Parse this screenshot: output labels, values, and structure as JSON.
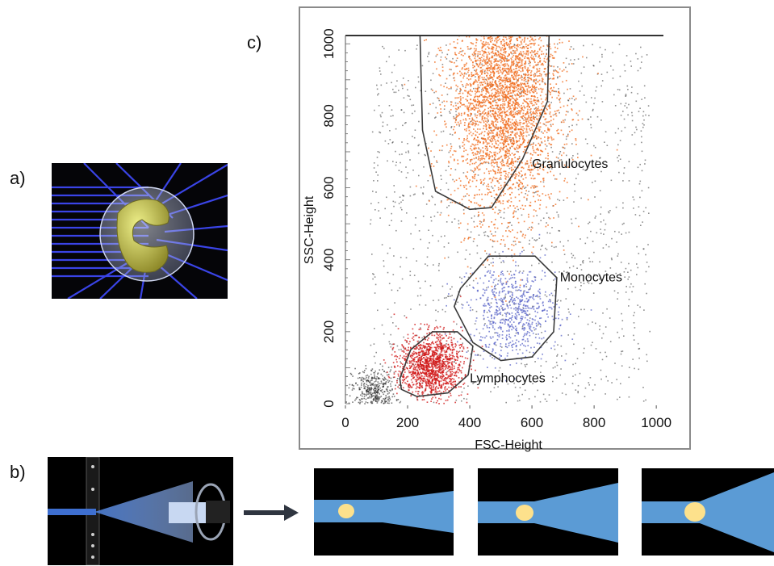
{
  "panel_labels": {
    "a": "a)",
    "b": "b)",
    "c": "c)"
  },
  "chart_data": {
    "type": "scatter",
    "title": "",
    "xlabel": "FSC-Height",
    "ylabel": "SSC-Height",
    "xlim": [
      0,
      1023
    ],
    "ylim": [
      0,
      1023
    ],
    "xticks": [
      0,
      200,
      400,
      600,
      800,
      1000
    ],
    "yticks": [
      0,
      200,
      400,
      600,
      800,
      1000
    ],
    "grid": false,
    "populations": [
      {
        "name": "Granulocytes",
        "color": "#f06a1a",
        "center": [
          510,
          860
        ],
        "spread": [
          85,
          170
        ],
        "count": 3800,
        "gate": [
          [
            240,
            1023
          ],
          [
            655,
            1023
          ],
          [
            650,
            840
          ],
          [
            570,
            680
          ],
          [
            470,
            545
          ],
          [
            400,
            540
          ],
          [
            290,
            590
          ],
          [
            248,
            760
          ]
        ],
        "label_at": [
          600,
          655
        ]
      },
      {
        "name": "Monocytes",
        "color": "#5a64c8",
        "center": [
          540,
          255
        ],
        "spread": [
          70,
          65
        ],
        "count": 650,
        "gate": [
          [
            370,
            320
          ],
          [
            460,
            410
          ],
          [
            610,
            410
          ],
          [
            680,
            350
          ],
          [
            670,
            200
          ],
          [
            600,
            130
          ],
          [
            500,
            120
          ],
          [
            410,
            170
          ],
          [
            350,
            270
          ]
        ],
        "label_at": [
          690,
          340
        ]
      },
      {
        "name": "Lymphocytes",
        "color": "#d01515",
        "center": [
          275,
          105
        ],
        "spread": [
          50,
          45
        ],
        "count": 1300,
        "gate": [
          [
            175,
            70
          ],
          [
            210,
            150
          ],
          [
            280,
            200
          ],
          [
            360,
            200
          ],
          [
            410,
            160
          ],
          [
            395,
            80
          ],
          [
            330,
            30
          ],
          [
            230,
            20
          ],
          [
            180,
            40
          ]
        ],
        "label_at": [
          400,
          60
        ]
      }
    ],
    "background_events": {
      "color": "#333333",
      "count": 1300
    },
    "debris_events": {
      "color": "#222222",
      "center": [
        90,
        40
      ],
      "count": 350
    }
  },
  "colors": {
    "laser_blue": "#5b9bd5",
    "cell_yellow": "#fde18c",
    "beam_line": "#3a44e6",
    "arrow": "#2f3540"
  }
}
